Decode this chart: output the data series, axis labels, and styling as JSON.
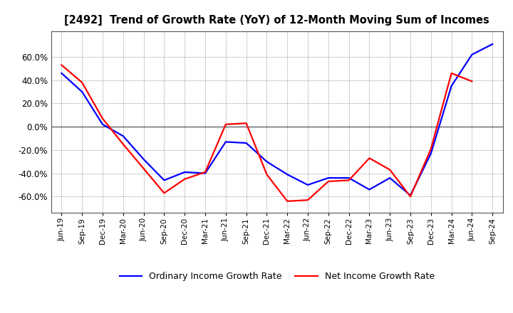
{
  "title": "[2492]  Trend of Growth Rate (YoY) of 12-Month Moving Sum of Incomes",
  "x_labels": [
    "Jun-19",
    "Sep-19",
    "Dec-19",
    "Mar-20",
    "Jun-20",
    "Sep-20",
    "Dec-20",
    "Mar-21",
    "Jun-21",
    "Sep-21",
    "Dec-21",
    "Mar-22",
    "Jun-22",
    "Sep-22",
    "Dec-22",
    "Mar-23",
    "Jun-23",
    "Sep-23",
    "Dec-23",
    "Mar-24",
    "Jun-24",
    "Sep-24"
  ],
  "ordinary_income": [
    0.46,
    0.3,
    0.02,
    -0.08,
    -0.28,
    -0.46,
    -0.39,
    -0.4,
    -0.13,
    -0.14,
    -0.3,
    -0.41,
    -0.5,
    -0.44,
    -0.44,
    -0.54,
    -0.44,
    -0.59,
    -0.23,
    0.35,
    0.62,
    0.71
  ],
  "net_income": [
    0.53,
    0.38,
    0.07,
    -0.15,
    -0.36,
    -0.57,
    -0.45,
    -0.39,
    0.02,
    0.03,
    -0.41,
    -0.64,
    -0.63,
    -0.47,
    -0.46,
    -0.27,
    -0.37,
    -0.6,
    -0.19,
    0.46,
    0.39,
    null
  ],
  "ylim": [
    -0.74,
    0.82
  ],
  "yticks": [
    -0.6,
    -0.4,
    -0.2,
    0.0,
    0.2,
    0.4,
    0.6
  ],
  "ordinary_color": "#0000FF",
  "net_color": "#FF0000",
  "background_color": "#FFFFFF",
  "plot_bg_color": "#FFFFFF",
  "grid_color": "#555555",
  "legend_ordinary": "Ordinary Income Growth Rate",
  "legend_net": "Net Income Growth Rate",
  "line_width": 1.6
}
